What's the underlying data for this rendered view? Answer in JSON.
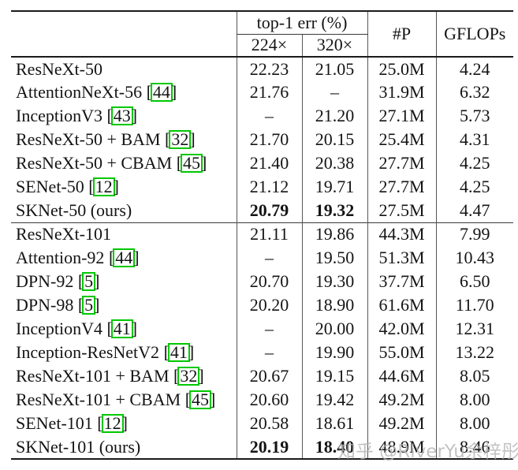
{
  "page": {
    "background": "#ffffff"
  },
  "colors": {
    "citation_box": "#00c800",
    "watermark_gray": "#b5b5b5",
    "rule_black": "#1a1a1a",
    "grid_gray": "#565656"
  },
  "watermark": {
    "text": "知乎 @RiverYu余梓彤"
  },
  "table": {
    "header": {
      "top1_err": "top-1 err (%)",
      "res_224": "224×",
      "res_320": "320×",
      "params": "#P",
      "gflops": "GFLOPs"
    },
    "rows": [
      {
        "model": "ResNeXt-50",
        "cite": "",
        "e224": "22.23",
        "e320": "21.05",
        "p": "25.0M",
        "g": "4.24",
        "bold": false,
        "sep": false
      },
      {
        "model": "AttentionNeXt-56",
        "cite": "44",
        "e224": "21.76",
        "e320": "–",
        "p": "31.9M",
        "g": "6.32",
        "bold": false,
        "sep": false
      },
      {
        "model": "InceptionV3",
        "cite": "43",
        "e224": "–",
        "e320": "21.20",
        "p": "27.1M",
        "g": "5.73",
        "bold": false,
        "sep": false
      },
      {
        "model": "ResNeXt-50 + BAM",
        "cite": "32",
        "e224": "21.70",
        "e320": "20.15",
        "p": "25.4M",
        "g": "4.31",
        "bold": false,
        "sep": false
      },
      {
        "model": "ResNeXt-50 + CBAM",
        "cite": "45",
        "e224": "21.40",
        "e320": "20.38",
        "p": "27.7M",
        "g": "4.25",
        "bold": false,
        "sep": false
      },
      {
        "model": "SENet-50",
        "cite": "12",
        "e224": "21.12",
        "e320": "19.71",
        "p": "27.7M",
        "g": "4.25",
        "bold": false,
        "sep": false
      },
      {
        "model": "SKNet-50 (ours)",
        "cite": "",
        "e224": "20.79",
        "e320": "19.32",
        "p": "27.5M",
        "g": "4.47",
        "bold": true,
        "sep": false
      },
      {
        "model": "ResNeXt-101",
        "cite": "",
        "e224": "21.11",
        "e320": "19.86",
        "p": "44.3M",
        "g": "7.99",
        "bold": false,
        "sep": true
      },
      {
        "model": "Attention-92",
        "cite": "44",
        "e224": "–",
        "e320": "19.50",
        "p": "51.3M",
        "g": "10.43",
        "bold": false,
        "sep": false
      },
      {
        "model": "DPN-92",
        "cite": "5",
        "e224": "20.70",
        "e320": "19.30",
        "p": "37.7M",
        "g": "6.50",
        "bold": false,
        "sep": false
      },
      {
        "model": "DPN-98",
        "cite": "5",
        "e224": "20.20",
        "e320": "18.90",
        "p": "61.6M",
        "g": "11.70",
        "bold": false,
        "sep": false
      },
      {
        "model": "InceptionV4",
        "cite": "41",
        "e224": "–",
        "e320": "20.00",
        "p": "42.0M",
        "g": "12.31",
        "bold": false,
        "sep": false
      },
      {
        "model": "Inception-ResNetV2",
        "cite": "41",
        "e224": "–",
        "e320": "19.90",
        "p": "55.0M",
        "g": "13.22",
        "bold": false,
        "sep": false
      },
      {
        "model": "ResNeXt-101 + BAM",
        "cite": "32",
        "e224": "20.67",
        "e320": "19.15",
        "p": "44.6M",
        "g": "8.05",
        "bold": false,
        "sep": false
      },
      {
        "model": "ResNeXt-101 + CBAM",
        "cite": "45",
        "e224": "20.60",
        "e320": "19.42",
        "p": "49.2M",
        "g": "8.00",
        "bold": false,
        "sep": false
      },
      {
        "model": "SENet-101",
        "cite": "12",
        "e224": "20.58",
        "e320": "18.61",
        "p": "49.2M",
        "g": "8.00",
        "bold": false,
        "sep": false
      },
      {
        "model": "SKNet-101 (ours)",
        "cite": "",
        "e224": "20.19",
        "e320": "18.40",
        "p": "48.9M",
        "g": "8.46",
        "bold": true,
        "sep": false
      }
    ]
  }
}
